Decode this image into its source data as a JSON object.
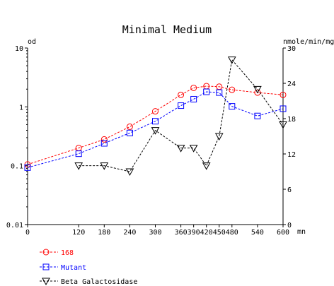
{
  "chart_data": {
    "type": "line",
    "title": "Minimal Medium",
    "y_left_label": "od",
    "y_right_label": "nmole/min/mg",
    "x_unit": "mn",
    "x_ticks": [
      0,
      120,
      180,
      240,
      300,
      360,
      390,
      420,
      450,
      480,
      540,
      600
    ],
    "x_tick_labels": [
      "0",
      "120",
      "180",
      "240",
      "300",
      "360",
      "390",
      "420",
      "450",
      "480",
      "540",
      "600"
    ],
    "xlim": [
      0,
      600
    ],
    "y_left_scale": "log",
    "y_left_ticks": [
      0.01,
      0.1,
      1,
      10
    ],
    "y_left_tick_labels": [
      "0.01",
      "0.1",
      "1",
      "10"
    ],
    "ylim_left": [
      0.01,
      10
    ],
    "y_right_ticks": [
      0,
      6,
      12,
      18,
      24,
      30
    ],
    "y_right_tick_labels": [
      "0",
      "6",
      "12",
      "18",
      "24",
      "30"
    ],
    "ylim_right": [
      0,
      30
    ],
    "legend_position": "bottom-left",
    "series": [
      {
        "name": "168",
        "axis": "left",
        "color": "#ff0000",
        "marker": "circle",
        "line": "dashed",
        "x": [
          0,
          120,
          180,
          240,
          300,
          360,
          390,
          420,
          450,
          480,
          540,
          600
        ],
        "values": [
          0.105,
          0.2,
          0.28,
          0.46,
          0.84,
          1.6,
          2.1,
          2.25,
          2.2,
          1.95,
          1.75,
          1.6
        ]
      },
      {
        "name": "Mutant",
        "axis": "left",
        "color": "#0000ff",
        "marker": "square",
        "line": "dashed",
        "x": [
          0,
          120,
          180,
          240,
          300,
          360,
          390,
          420,
          450,
          480,
          540,
          600
        ],
        "values": [
          0.093,
          0.16,
          0.24,
          0.36,
          0.57,
          1.05,
          1.35,
          1.8,
          1.75,
          1.02,
          0.7,
          0.93
        ]
      },
      {
        "name": "Beta Galactosidase",
        "axis": "right",
        "color": "#000000",
        "marker": "triangle-down",
        "line": "dashed",
        "x": [
          120,
          180,
          240,
          300,
          360,
          390,
          420,
          450,
          480,
          540,
          600
        ],
        "values": [
          10,
          10,
          9,
          16,
          13,
          13,
          10,
          15,
          28,
          23,
          17
        ]
      }
    ]
  }
}
